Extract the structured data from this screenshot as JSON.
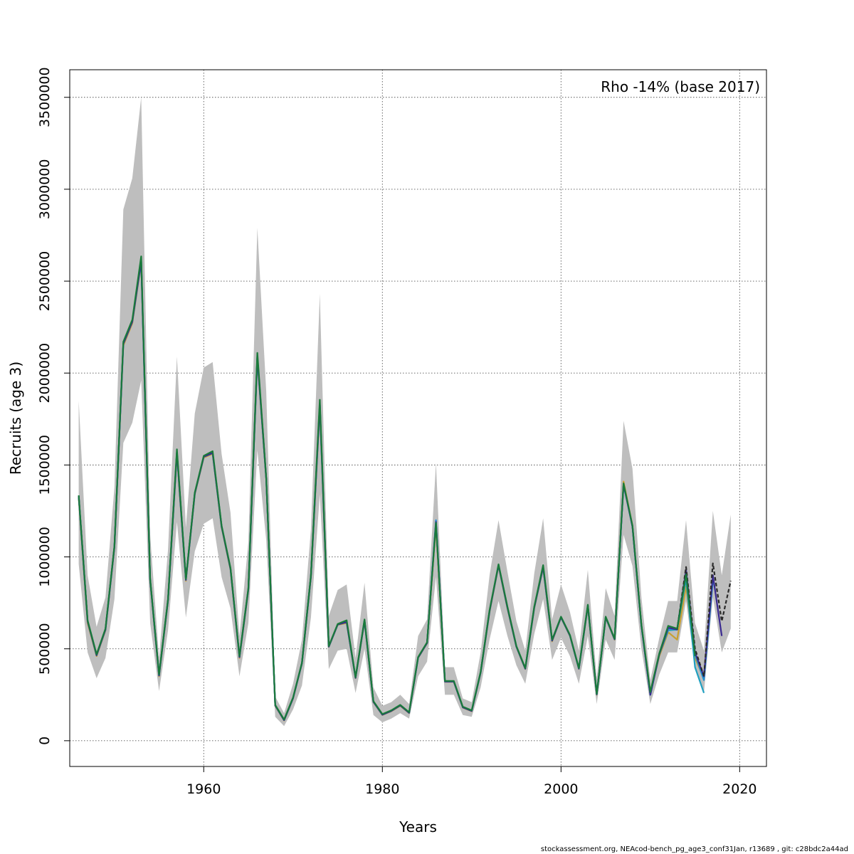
{
  "chart_data": {
    "type": "line",
    "xlabel": "Years",
    "ylabel": "Recruits (age 3)",
    "annotation": "Rho -14% (base 2017)",
    "xlim": [
      1945,
      2023
    ],
    "ylim": [
      -140000,
      3650000
    ],
    "xticks": [
      1960,
      1980,
      2000,
      2020
    ],
    "yticks": [
      0,
      500000,
      1000000,
      1500000,
      2000000,
      2500000,
      3000000,
      3500000
    ],
    "grid": true,
    "legend": "none",
    "band": {
      "x": [
        1946,
        1947,
        1948,
        1949,
        1950,
        1951,
        1952,
        1953,
        1954,
        1955,
        1956,
        1957,
        1958,
        1959,
        1960,
        1961,
        1962,
        1963,
        1964,
        1965,
        1966,
        1967,
        1968,
        1969,
        1970,
        1971,
        1972,
        1973,
        1974,
        1975,
        1976,
        1977,
        1978,
        1979,
        1980,
        1981,
        1982,
        1983,
        1984,
        1985,
        1986,
        1987,
        1988,
        1989,
        1990,
        1991,
        1992,
        1993,
        1994,
        1995,
        1996,
        1997,
        1998,
        1999,
        2000,
        2001,
        2002,
        2003,
        2004,
        2005,
        2006,
        2007,
        2008,
        2009,
        2010,
        2011,
        2012,
        2013,
        2014,
        2015,
        2016,
        2017,
        2018,
        2019
      ],
      "upper": [
        1850000,
        900000,
        620000,
        780000,
        1380000,
        2890000,
        3060000,
        3500000,
        1120000,
        450000,
        1040000,
        2090000,
        1160000,
        1780000,
        2030000,
        2060000,
        1560000,
        1240000,
        570000,
        1080000,
        2790000,
        1900000,
        240000,
        150000,
        310000,
        550000,
        1150000,
        2430000,
        680000,
        820000,
        850000,
        450000,
        860000,
        290000,
        190000,
        210000,
        250000,
        200000,
        570000,
        660000,
        1510000,
        400000,
        400000,
        230000,
        210000,
        480000,
        900000,
        1200000,
        920000,
        650000,
        490000,
        910000,
        1210000,
        660000,
        850000,
        700000,
        490000,
        930000,
        340000,
        830000,
        680000,
        1740000,
        1480000,
        780000,
        330000,
        560000,
        760000,
        760000,
        1200000,
        640000,
        490000,
        1250000,
        900000,
        1230000
      ],
      "lower": [
        960000,
        480000,
        340000,
        450000,
        770000,
        1620000,
        1730000,
        1960000,
        640000,
        270000,
        600000,
        1190000,
        670000,
        1030000,
        1180000,
        1210000,
        890000,
        720000,
        350000,
        640000,
        1580000,
        1090000,
        130000,
        80000,
        170000,
        300000,
        670000,
        1340000,
        390000,
        490000,
        500000,
        260000,
        500000,
        140000,
        100000,
        120000,
        150000,
        120000,
        350000,
        430000,
        890000,
        250000,
        250000,
        140000,
        130000,
        290000,
        550000,
        760000,
        570000,
        410000,
        310000,
        580000,
        770000,
        440000,
        560000,
        460000,
        310000,
        570000,
        200000,
        550000,
        440000,
        1120000,
        950000,
        500000,
        200000,
        360000,
        480000,
        480000,
        760000,
        400000,
        260000,
        780000,
        480000,
        610000
      ]
    },
    "series": [
      {
        "color": "#c8a030",
        "x": [
          1946,
          1947,
          1948,
          1949,
          1950,
          1951,
          1952,
          1953,
          1954,
          1955,
          1956,
          1957,
          1958,
          1959,
          1960,
          1961,
          1962,
          1963,
          1964,
          1965,
          1966,
          1967,
          1968,
          1969,
          1970,
          1971,
          1972,
          1973,
          1974,
          1975,
          1976,
          1977,
          1978,
          1979,
          1980,
          1981,
          1982,
          1983,
          1984,
          1985,
          1986,
          1987,
          1988,
          1989,
          1990,
          1991,
          1992,
          1993,
          1994,
          1995,
          1996,
          1997,
          1998,
          1999,
          2000,
          2001,
          2002,
          2003,
          2004,
          2005,
          2006,
          2007,
          2008,
          2009,
          2010,
          2011,
          2012,
          2013,
          2014,
          2015,
          2016
        ],
        "values": [
          1320000,
          640000,
          460000,
          600000,
          1050000,
          2150000,
          2270000,
          2600000,
          870000,
          350000,
          760000,
          1560000,
          870000,
          1340000,
          1540000,
          1560000,
          1160000,
          930000,
          450000,
          820000,
          2080000,
          1420000,
          190000,
          110000,
          230000,
          420000,
          890000,
          1810000,
          510000,
          630000,
          640000,
          340000,
          650000,
          210000,
          140000,
          160000,
          190000,
          150000,
          450000,
          530000,
          1170000,
          320000,
          320000,
          180000,
          160000,
          370000,
          700000,
          950000,
          720000,
          510000,
          390000,
          720000,
          940000,
          540000,
          670000,
          570000,
          390000,
          730000,
          250000,
          670000,
          550000,
          1410000,
          1170000,
          630000,
          260000,
          460000,
          590000,
          550000,
          840000,
          450000,
          340000
        ]
      },
      {
        "color": "#20a0c0",
        "x": [
          1946,
          1947,
          1948,
          1949,
          1950,
          1951,
          1952,
          1953,
          1954,
          1955,
          1956,
          1957,
          1958,
          1959,
          1960,
          1961,
          1962,
          1963,
          1964,
          1965,
          1966,
          1967,
          1968,
          1969,
          1970,
          1971,
          1972,
          1973,
          1974,
          1975,
          1976,
          1977,
          1978,
          1979,
          1980,
          1981,
          1982,
          1983,
          1984,
          1985,
          1986,
          1987,
          1988,
          1989,
          1990,
          1991,
          1992,
          1993,
          1994,
          1995,
          1996,
          1997,
          1998,
          1999,
          2000,
          2001,
          2002,
          2003,
          2004,
          2005,
          2006,
          2007,
          2008,
          2009,
          2010,
          2011,
          2012,
          2013,
          2014,
          2015,
          2016
        ],
        "values": [
          1330000,
          650000,
          465000,
          605000,
          1055000,
          2160000,
          2280000,
          2610000,
          875000,
          355000,
          765000,
          1570000,
          875000,
          1345000,
          1545000,
          1565000,
          1165000,
          935000,
          455000,
          825000,
          2090000,
          1425000,
          192000,
          112000,
          232000,
          422000,
          895000,
          1830000,
          512000,
          632000,
          645000,
          342000,
          655000,
          212000,
          142000,
          162000,
          192000,
          152000,
          452000,
          532000,
          1190000,
          322000,
          322000,
          182000,
          162000,
          372000,
          705000,
          955000,
          725000,
          512000,
          392000,
          725000,
          945000,
          545000,
          672000,
          572000,
          392000,
          735000,
          252000,
          672000,
          552000,
          1395000,
          1165000,
          625000,
          250000,
          470000,
          600000,
          605000,
          880000,
          400000,
          260000
        ]
      },
      {
        "color": "#2090d0",
        "x": [
          1946,
          1947,
          1948,
          1949,
          1950,
          1951,
          1952,
          1953,
          1954,
          1955,
          1956,
          1957,
          1958,
          1959,
          1960,
          1961,
          1962,
          1963,
          1964,
          1965,
          1966,
          1967,
          1968,
          1969,
          1970,
          1971,
          1972,
          1973,
          1974,
          1975,
          1976,
          1977,
          1978,
          1979,
          1980,
          1981,
          1982,
          1983,
          1984,
          1985,
          1986,
          1987,
          1988,
          1989,
          1990,
          1991,
          1992,
          1993,
          1994,
          1995,
          1996,
          1997,
          1998,
          1999,
          2000,
          2001,
          2002,
          2003,
          2004,
          2005,
          2006,
          2007,
          2008,
          2009,
          2010,
          2011,
          2012,
          2013,
          2014,
          2015,
          2016,
          2017
        ],
        "values": [
          1330000,
          650000,
          465000,
          605000,
          1055000,
          2160000,
          2280000,
          2610000,
          875000,
          355000,
          765000,
          1570000,
          875000,
          1345000,
          1545000,
          1565000,
          1165000,
          935000,
          455000,
          825000,
          2090000,
          1425000,
          192000,
          112000,
          232000,
          422000,
          895000,
          1830000,
          512000,
          632000,
          645000,
          342000,
          655000,
          212000,
          142000,
          162000,
          192000,
          152000,
          452000,
          532000,
          1200000,
          322000,
          322000,
          182000,
          162000,
          372000,
          705000,
          955000,
          725000,
          512000,
          392000,
          725000,
          945000,
          545000,
          672000,
          572000,
          392000,
          735000,
          252000,
          672000,
          552000,
          1395000,
          1165000,
          625000,
          250000,
          470000,
          610000,
          605000,
          920000,
          470000,
          330000,
          870000
        ]
      },
      {
        "color": "#3a2a90",
        "x": [
          1946,
          1947,
          1948,
          1949,
          1950,
          1951,
          1952,
          1953,
          1954,
          1955,
          1956,
          1957,
          1958,
          1959,
          1960,
          1961,
          1962,
          1963,
          1964,
          1965,
          1966,
          1967,
          1968,
          1969,
          1970,
          1971,
          1972,
          1973,
          1974,
          1975,
          1976,
          1977,
          1978,
          1979,
          1980,
          1981,
          1982,
          1983,
          1984,
          1985,
          1986,
          1987,
          1988,
          1989,
          1990,
          1991,
          1992,
          1993,
          1994,
          1995,
          1996,
          1997,
          1998,
          1999,
          2000,
          2001,
          2002,
          2003,
          2004,
          2005,
          2006,
          2007,
          2008,
          2009,
          2010,
          2011,
          2012,
          2013,
          2014,
          2015,
          2016,
          2017,
          2018
        ],
        "values": [
          1330000,
          650000,
          465000,
          605000,
          1055000,
          2160000,
          2280000,
          2610000,
          875000,
          355000,
          765000,
          1570000,
          875000,
          1345000,
          1545000,
          1565000,
          1165000,
          935000,
          455000,
          825000,
          2090000,
          1425000,
          192000,
          112000,
          232000,
          422000,
          895000,
          1830000,
          512000,
          632000,
          645000,
          342000,
          655000,
          212000,
          142000,
          162000,
          192000,
          152000,
          452000,
          532000,
          1190000,
          322000,
          322000,
          182000,
          162000,
          372000,
          705000,
          955000,
          725000,
          512000,
          392000,
          725000,
          945000,
          545000,
          672000,
          572000,
          392000,
          735000,
          252000,
          672000,
          552000,
          1395000,
          1165000,
          625000,
          250000,
          470000,
          615000,
          605000,
          930000,
          480000,
          350000,
          900000,
          570000
        ]
      },
      {
        "color": "#2a2a2a",
        "dashed": true,
        "x": [
          2013,
          2014,
          2015,
          2016,
          2017,
          2018,
          2019
        ],
        "values": [
          605000,
          945000,
          500000,
          350000,
          965000,
          650000,
          870000
        ]
      },
      {
        "color": "#1a7a3a",
        "x": [
          1946,
          1947,
          1948,
          1949,
          1950,
          1951,
          1952,
          1953,
          1954,
          1955,
          1956,
          1957,
          1958,
          1959,
          1960,
          1961,
          1962,
          1963,
          1964,
          1965,
          1966,
          1967,
          1968,
          1969,
          1970,
          1971,
          1972,
          1973,
          1974,
          1975,
          1976,
          1977,
          1978,
          1979,
          1980,
          1981,
          1982,
          1983,
          1984,
          1985,
          1986,
          1987,
          1988,
          1989,
          1990,
          1991,
          1992,
          1993,
          1994,
          1995,
          1996,
          1997,
          1998,
          1999,
          2000,
          2001,
          2002,
          2003,
          2004,
          2005,
          2006,
          2007,
          2008,
          2009,
          2010,
          2011,
          2012,
          2013,
          2014,
          2015
        ],
        "values": [
          1335000,
          655000,
          470000,
          610000,
          1060000,
          2170000,
          2290000,
          2635000,
          880000,
          360000,
          770000,
          1585000,
          880000,
          1350000,
          1550000,
          1575000,
          1170000,
          940000,
          460000,
          830000,
          2110000,
          1430000,
          195000,
          115000,
          235000,
          425000,
          900000,
          1855000,
          515000,
          635000,
          655000,
          345000,
          660000,
          215000,
          145000,
          165000,
          195000,
          155000,
          455000,
          535000,
          1185000,
          325000,
          325000,
          185000,
          165000,
          375000,
          710000,
          960000,
          730000,
          515000,
          395000,
          730000,
          955000,
          550000,
          675000,
          575000,
          395000,
          740000,
          255000,
          675000,
          555000,
          1400000,
          1170000,
          630000,
          265000,
          475000,
          625000,
          610000,
          905000,
          460000
        ]
      }
    ]
  },
  "footer": "stockassessment.org, NEAcod-bench_pg_age3_conf31Jan, r13689 , git: c28bdc2a44ad"
}
